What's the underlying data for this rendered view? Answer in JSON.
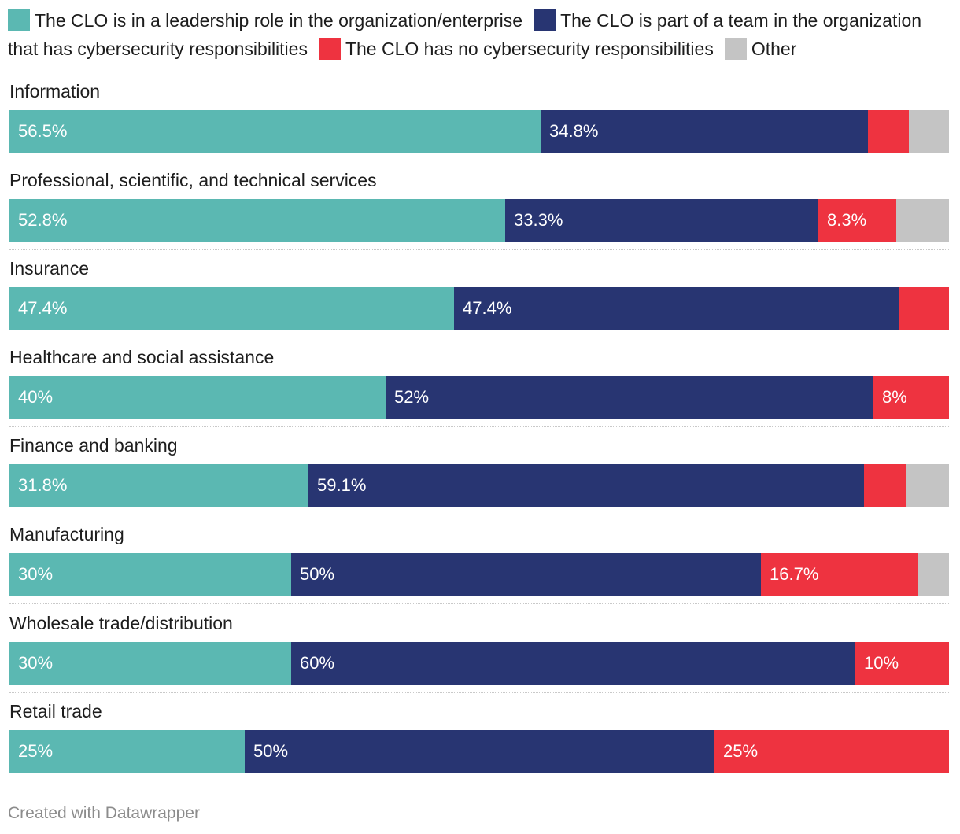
{
  "chart_data": {
    "type": "bar",
    "orientation": "horizontal",
    "stacked": true,
    "legend_position": "top",
    "categories": [
      "Information",
      "Professional, scientific, and technical services",
      "Insurance",
      "Healthcare and social assistance",
      "Finance and banking",
      "Manufacturing",
      "Wholesale trade/distribution",
      "Retail trade"
    ],
    "series": [
      {
        "name": "The CLO is in a leadership role in the organization/enterprise",
        "color": "#5bb8b2",
        "values": [
          56.5,
          52.8,
          47.4,
          40,
          31.8,
          30,
          30,
          25
        ],
        "labels": [
          "56.5%",
          "52.8%",
          "47.4%",
          "40%",
          "31.8%",
          "30%",
          "30%",
          "25%"
        ]
      },
      {
        "name": "The CLO is part of a team in the organization that has cybersecurity responsibilities",
        "color": "#283572",
        "values": [
          34.8,
          33.3,
          47.4,
          52,
          59.1,
          50,
          60,
          50
        ],
        "labels": [
          "34.8%",
          "33.3%",
          "47.4%",
          "52%",
          "59.1%",
          "50%",
          "60%",
          "50%"
        ]
      },
      {
        "name": "The CLO has no cybersecurity responsibilities",
        "color": "#ee3340",
        "values": [
          4.3,
          8.3,
          5.3,
          8,
          4.5,
          16.7,
          10,
          25
        ],
        "labels": [
          "",
          "8.3%",
          "",
          "8%",
          "",
          "16.7%",
          "10%",
          "25%"
        ]
      },
      {
        "name": "Other",
        "color": "#c4c4c4",
        "values": [
          4.3,
          5.6,
          0,
          0,
          4.5,
          3.3,
          0,
          0
        ],
        "labels": [
          "",
          "",
          "",
          "",
          "",
          "",
          "",
          ""
        ]
      }
    ],
    "xlim": [
      0,
      100
    ]
  },
  "credit": "Created with Datawrapper"
}
